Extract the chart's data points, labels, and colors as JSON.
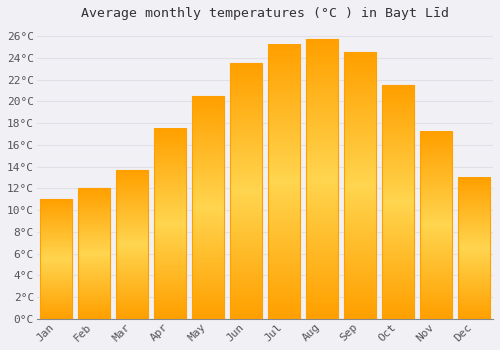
{
  "title": "Average monthly temperatures (°C ) in Bayt Līd",
  "months": [
    "Jan",
    "Feb",
    "Mar",
    "Apr",
    "May",
    "Jun",
    "Jul",
    "Aug",
    "Sep",
    "Oct",
    "Nov",
    "Dec"
  ],
  "values": [
    11.0,
    12.0,
    13.7,
    17.5,
    20.5,
    23.5,
    25.2,
    25.7,
    24.5,
    21.5,
    17.2,
    13.0
  ],
  "bar_color_center": "#FFD54F",
  "bar_color_edge": "#FFA000",
  "background_color": "#f0f0f5",
  "plot_bg_color": "#f0f0f5",
  "grid_color": "#e0e0e8",
  "ylim": [
    0,
    27
  ],
  "yticks": [
    0,
    2,
    4,
    6,
    8,
    10,
    12,
    14,
    16,
    18,
    20,
    22,
    24,
    26
  ],
  "title_fontsize": 9.5,
  "tick_fontsize": 8,
  "font_family": "monospace"
}
